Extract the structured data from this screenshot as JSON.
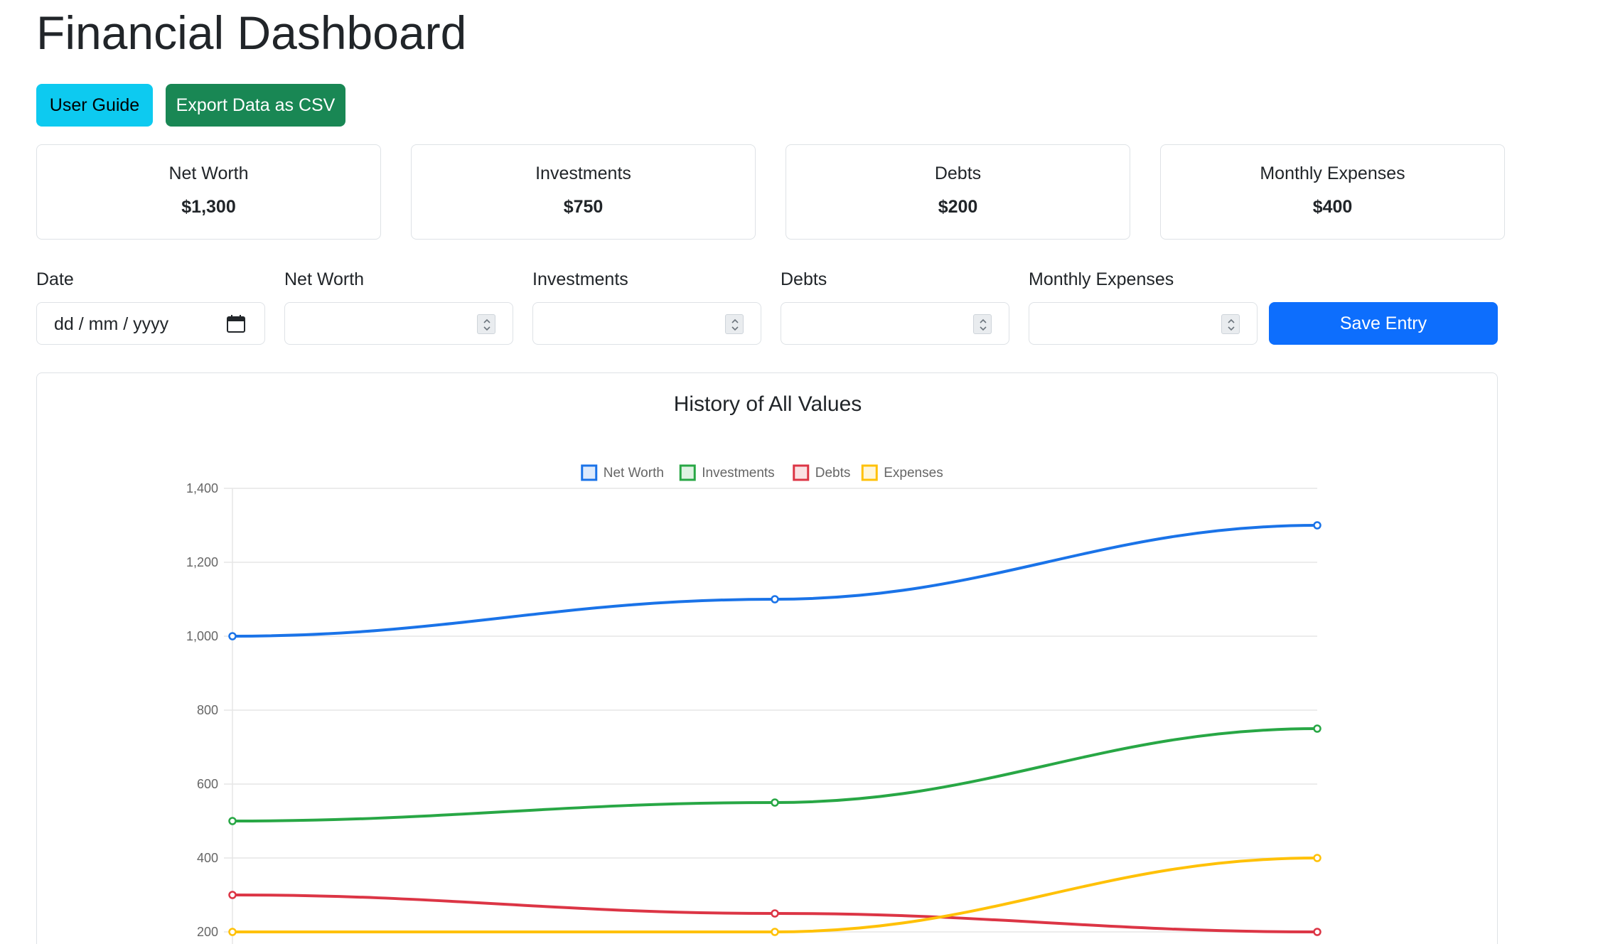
{
  "header": {
    "title": "Financial Dashboard"
  },
  "actions": {
    "guide_label": "User Guide",
    "export_label": "Export Data as CSV"
  },
  "summary": [
    {
      "label": "Net Worth",
      "value": "$1,300"
    },
    {
      "label": "Investments",
      "value": "$750"
    },
    {
      "label": "Debts",
      "value": "$200"
    },
    {
      "label": "Monthly Expenses",
      "value": "$400"
    }
  ],
  "form": {
    "date_label": "Date",
    "date_placeholder": "dd / mm / yyyy",
    "net_worth_label": "Net Worth",
    "investments_label": "Investments",
    "debts_label": "Debts",
    "expenses_label": "Monthly Expenses",
    "save_label": "Save Entry"
  },
  "icons": {
    "date": "calendar-icon",
    "number": "spinner-icon"
  },
  "colors": {
    "net_worth": "#0d6efd",
    "investments": "#198754",
    "debts": "#dc3545",
    "expenses": "#ffc107",
    "guide": "#0dcaf0",
    "export": "#198754",
    "save": "#0d6efd"
  },
  "chart_data": {
    "type": "line",
    "title": "History of All Values",
    "xlabel": "",
    "ylabel": "",
    "ylim": [
      200,
      1400
    ],
    "yticks": [
      "1,400",
      "1,200",
      "1,000",
      "800",
      "600",
      "400",
      "200"
    ],
    "ytick_values": [
      1400,
      1200,
      1000,
      800,
      600,
      400,
      200
    ],
    "x": [
      0,
      1,
      2
    ],
    "grid": true,
    "legend": "top-center",
    "series": [
      {
        "name": "Net Worth",
        "values": [
          1000,
          1100,
          1300
        ],
        "color": "#1a73e8"
      },
      {
        "name": "Investments",
        "values": [
          500,
          550,
          750
        ],
        "color": "#28a745"
      },
      {
        "name": "Debts",
        "values": [
          300,
          250,
          200
        ],
        "color": "#dc3545"
      },
      {
        "name": "Expenses",
        "values": [
          200,
          200,
          400
        ],
        "color": "#ffc107"
      }
    ]
  }
}
